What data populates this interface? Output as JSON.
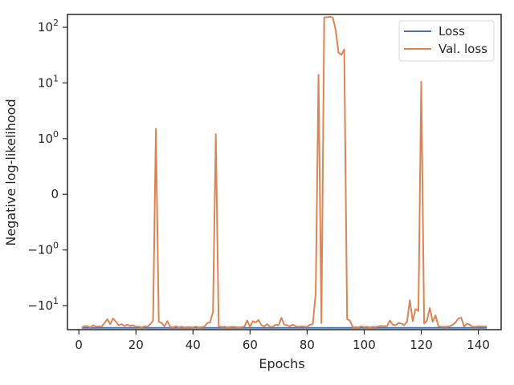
{
  "chart_data": {
    "type": "line",
    "title": "",
    "xlabel": "Epochs",
    "ylabel": "Negative log-likelihood",
    "yscale": "symlog (linthresh=1)",
    "xlim": [
      -4,
      148
    ],
    "ylim": [
      -27,
      170
    ],
    "xticks": [
      0,
      20,
      40,
      60,
      80,
      100,
      120,
      140
    ],
    "xtick_labels": [
      "0",
      "20",
      "40",
      "60",
      "80",
      "100",
      "120",
      "140"
    ],
    "yticks": [
      100,
      10,
      1,
      0,
      -1,
      -10
    ],
    "ytick_labels": [
      "10^2",
      "10^1",
      "10^0",
      "0",
      "−10^0",
      "−10^1"
    ],
    "grid": false,
    "legend_position": "top-right",
    "series": [
      {
        "name": "Loss",
        "color": "#4c72b0",
        "x": [
          1,
          143
        ],
        "y": [
          -25,
          -25
        ]
      },
      {
        "name": "Val. loss",
        "color": "#dd8452",
        "x": [
          1,
          2,
          3,
          4,
          5,
          6,
          7,
          8,
          9,
          10,
          11,
          12,
          13,
          14,
          15,
          16,
          17,
          18,
          19,
          20,
          21,
          22,
          23,
          24,
          25,
          26,
          27,
          28,
          29,
          30,
          31,
          32,
          33,
          34,
          35,
          36,
          37,
          38,
          39,
          40,
          41,
          42,
          43,
          44,
          45,
          46,
          47,
          48,
          49,
          50,
          51,
          52,
          53,
          54,
          55,
          56,
          57,
          58,
          59,
          60,
          61,
          62,
          63,
          64,
          65,
          66,
          67,
          68,
          69,
          70,
          71,
          72,
          73,
          74,
          75,
          76,
          77,
          78,
          79,
          80,
          81,
          82,
          83,
          84,
          85,
          86,
          87,
          88,
          89,
          90,
          91,
          92,
          93,
          94,
          95,
          96,
          97,
          98,
          99,
          100,
          101,
          102,
          103,
          104,
          105,
          106,
          107,
          108,
          109,
          110,
          111,
          112,
          113,
          114,
          115,
          116,
          117,
          118,
          119,
          120,
          121,
          122,
          123,
          124,
          125,
          126,
          127,
          128,
          129,
          130,
          131,
          132,
          133,
          134,
          135,
          136,
          137,
          138,
          139,
          140,
          141,
          142,
          143
        ],
        "y": [
          -24.8,
          -23.2,
          -23.5,
          -24.5,
          -22.5,
          -23.8,
          -23.5,
          -23.8,
          -20.5,
          -17.5,
          -21.5,
          -17.0,
          -19.5,
          -22.5,
          -21.5,
          -23.2,
          -22.0,
          -23.2,
          -22.5,
          -24.0,
          -23.8,
          -24.5,
          -23.5,
          -24.0,
          -21.5,
          -18.5,
          1.5,
          -19.5,
          -20.5,
          -23.5,
          -19.0,
          -24.0,
          -24.5,
          -23.5,
          -24.5,
          -23.8,
          -24.5,
          -24.2,
          -24.2,
          -24.5,
          -23.8,
          -24.5,
          -24.2,
          -23.8,
          -20.5,
          -20.0,
          -13.0,
          1.2,
          -23.5,
          -24.2,
          -23.8,
          -24.5,
          -24.2,
          -24.0,
          -24.2,
          -24.5,
          -24.2,
          -23.8,
          -18.5,
          -24.0,
          -19.0,
          -20.0,
          -18.0,
          -22.5,
          -23.5,
          -21.5,
          -24.0,
          -23.8,
          -22.0,
          -22.5,
          -16.5,
          -22.0,
          -22.5,
          -23.5,
          -22.0,
          -23.5,
          -24.0,
          -23.5,
          -23.8,
          -24.0,
          -22.0,
          -21.5,
          -6.0,
          14.0,
          -20.5,
          150,
          152,
          155,
          150,
          90,
          35,
          32,
          40,
          -17.5,
          -18.5,
          -24.5,
          -24.2,
          -24.5,
          -23.5,
          -24.2,
          -24.0,
          -24.5,
          -24.0,
          -24.2,
          -23.5,
          -23.2,
          -23.5,
          -23.2,
          -18.5,
          -22.0,
          -22.5,
          -20.5,
          -21.0,
          -22.5,
          -19.5,
          -8.0,
          -19.0,
          -11.5,
          -12.5,
          10.5,
          -21.0,
          -18.5,
          -11.0,
          -19.5,
          -15.0,
          -23.5,
          -23.8,
          -24.0,
          -24.0,
          -23.5,
          -22.0,
          -20.0,
          -17.0,
          -16.5,
          -23.8,
          -21.0,
          -22.0,
          -24.0,
          -24.0,
          -23.5,
          -23.5,
          -23.8,
          -23.5
        ]
      }
    ]
  }
}
